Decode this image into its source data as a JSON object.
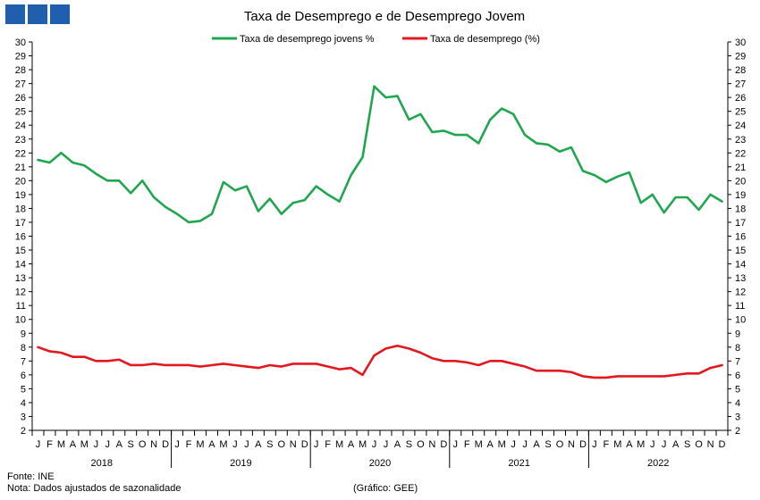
{
  "brand": {
    "logo_color": "#1f5fae"
  },
  "footer": {
    "source": "Fonte: INE",
    "note": "Nota: Dados ajustados de sazonalidade",
    "credit": "(Gráfico: GEE)"
  },
  "chart_data": {
    "type": "line",
    "title": "Taxa de Desemprego e de Desemprego Jovem",
    "xlabel": "",
    "ylabel": "",
    "ylim": [
      2,
      30
    ],
    "yticks": [
      2,
      3,
      4,
      5,
      6,
      7,
      8,
      9,
      10,
      11,
      12,
      13,
      14,
      15,
      16,
      17,
      18,
      19,
      20,
      21,
      22,
      23,
      24,
      25,
      26,
      27,
      28,
      29,
      30
    ],
    "grid": false,
    "legend": "top-center",
    "month_labels": [
      "J",
      "F",
      "M",
      "A",
      "M",
      "J",
      "J",
      "A",
      "S",
      "O",
      "N",
      "D"
    ],
    "years": [
      "2018",
      "2019",
      "2020",
      "2021",
      "2022"
    ],
    "series": [
      {
        "name": "Taxa de desemprego jovens %",
        "color": "#21a650",
        "values": [
          21.5,
          21.3,
          22.0,
          21.3,
          21.1,
          20.5,
          20.0,
          20.0,
          19.1,
          20.0,
          18.8,
          18.1,
          17.6,
          17.0,
          17.1,
          17.6,
          19.9,
          19.3,
          19.6,
          17.8,
          18.7,
          17.6,
          18.4,
          18.6,
          19.6,
          19.0,
          18.5,
          20.4,
          21.7,
          26.8,
          26.0,
          26.1,
          24.4,
          24.8,
          23.5,
          23.6,
          23.3,
          23.3,
          22.7,
          24.4,
          25.2,
          24.8,
          23.3,
          22.7,
          22.6,
          22.1,
          22.4,
          20.7,
          20.4,
          19.9,
          20.3,
          20.6,
          18.4,
          19.0,
          17.7,
          18.8,
          18.8,
          17.9,
          19.0,
          18.5
        ]
      },
      {
        "name": "Taxa de desemprego (%)",
        "color": "#e3171e",
        "values": [
          8.0,
          7.7,
          7.6,
          7.3,
          7.3,
          7.0,
          7.0,
          7.1,
          6.7,
          6.7,
          6.8,
          6.7,
          6.7,
          6.7,
          6.6,
          6.7,
          6.8,
          6.7,
          6.6,
          6.5,
          6.7,
          6.6,
          6.8,
          6.8,
          6.8,
          6.6,
          6.4,
          6.5,
          6.0,
          7.4,
          7.9,
          8.1,
          7.9,
          7.6,
          7.2,
          7.0,
          7.0,
          6.9,
          6.7,
          7.0,
          7.0,
          6.8,
          6.6,
          6.3,
          6.3,
          6.3,
          6.2,
          5.9,
          5.8,
          5.8,
          5.9,
          5.9,
          5.9,
          5.9,
          5.9,
          6.0,
          6.1,
          6.1,
          6.5,
          6.7
        ]
      }
    ]
  }
}
